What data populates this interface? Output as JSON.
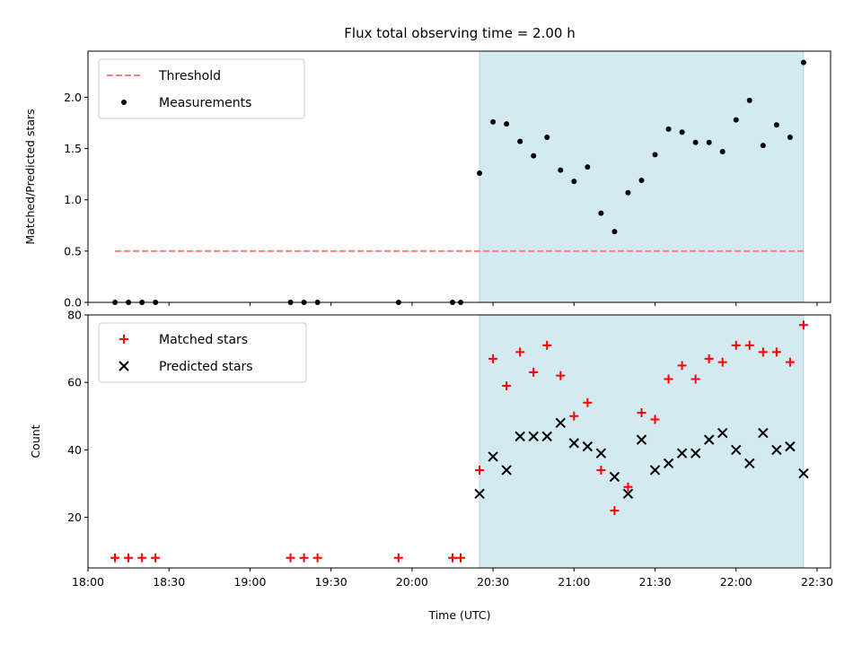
{
  "chart_data": {
    "title": "Flux total observing time = 2.00 h",
    "xlabel": "Time (UTC)",
    "xlim": [
      "18:00",
      "22:35"
    ],
    "xticks": [
      "18:00",
      "18:30",
      "19:00",
      "19:30",
      "20:00",
      "20:30",
      "21:00",
      "21:30",
      "22:00",
      "22:30"
    ],
    "shaded_interval": [
      "20:25",
      "22:25"
    ],
    "shade_color": "#d3eaf1",
    "panels": [
      {
        "type": "scatter",
        "ylabel": "Matched/Predicted stars",
        "ylim": [
          0,
          2.45
        ],
        "yticks": [
          "0.0",
          "0.5",
          "1.0",
          "1.5",
          "2.0"
        ],
        "series": [
          {
            "name": "Threshold",
            "style": "dashed-line",
            "color": "#ff7f7f",
            "x": [
              "18:10",
              "22:25"
            ],
            "y": [
              0.5,
              0.5
            ]
          },
          {
            "name": "Measurements",
            "style": "dot",
            "color": "#000000",
            "x": [
              "18:10",
              "18:15",
              "18:20",
              "18:25",
              "19:15",
              "19:20",
              "19:25",
              "19:55",
              "20:15",
              "20:18",
              "20:25",
              "20:30",
              "20:35",
              "20:40",
              "20:45",
              "20:50",
              "20:55",
              "21:00",
              "21:05",
              "21:10",
              "21:15",
              "21:20",
              "21:25",
              "21:30",
              "21:35",
              "21:40",
              "21:45",
              "21:50",
              "21:55",
              "22:00",
              "22:05",
              "22:10",
              "22:15",
              "22:20",
              "22:25"
            ],
            "y": [
              0,
              0,
              0,
              0,
              0,
              0,
              0,
              0,
              0,
              0,
              1.26,
              1.76,
              1.74,
              1.57,
              1.43,
              1.61,
              1.29,
              1.18,
              1.32,
              0.87,
              0.69,
              1.07,
              1.19,
              1.44,
              1.69,
              1.66,
              1.56,
              1.56,
              1.47,
              1.78,
              1.97,
              1.53,
              1.73,
              1.61,
              2.34
            ]
          }
        ]
      },
      {
        "type": "scatter",
        "ylabel": "Count",
        "ylim": [
          5,
          80
        ],
        "yticks": [
          "20",
          "40",
          "60",
          "80"
        ],
        "series": [
          {
            "name": "Matched stars",
            "style": "plus",
            "color": "#ff0000",
            "x": [
              "18:10",
              "18:15",
              "18:20",
              "18:25",
              "19:15",
              "19:20",
              "19:25",
              "19:55",
              "20:15",
              "20:18",
              "20:25",
              "20:30",
              "20:35",
              "20:40",
              "20:45",
              "20:50",
              "20:55",
              "21:00",
              "21:05",
              "21:10",
              "21:15",
              "21:20",
              "21:25",
              "21:30",
              "21:35",
              "21:40",
              "21:45",
              "21:50",
              "21:55",
              "22:00",
              "22:05",
              "22:10",
              "22:15",
              "22:20",
              "22:25"
            ],
            "y": [
              8,
              8,
              8,
              8,
              8,
              8,
              8,
              8,
              8,
              8,
              34,
              67,
              59,
              69,
              63,
              71,
              62,
              50,
              54,
              34,
              22,
              29,
              51,
              49,
              61,
              65,
              61,
              67,
              66,
              71,
              71,
              69,
              69,
              66,
              77
            ]
          },
          {
            "name": "Predicted stars",
            "style": "x",
            "color": "#000000",
            "x": [
              "20:25",
              "20:30",
              "20:35",
              "20:40",
              "20:45",
              "20:50",
              "20:55",
              "21:00",
              "21:05",
              "21:10",
              "21:15",
              "21:20",
              "21:25",
              "21:30",
              "21:35",
              "21:40",
              "21:45",
              "21:50",
              "21:55",
              "22:00",
              "22:05",
              "22:10",
              "22:15",
              "22:20",
              "22:25"
            ],
            "y": [
              27,
              38,
              34,
              44,
              44,
              44,
              48,
              42,
              41,
              39,
              32,
              27,
              43,
              34,
              36,
              39,
              39,
              43,
              45,
              40,
              36,
              45,
              40,
              41,
              33
            ]
          }
        ]
      }
    ]
  }
}
